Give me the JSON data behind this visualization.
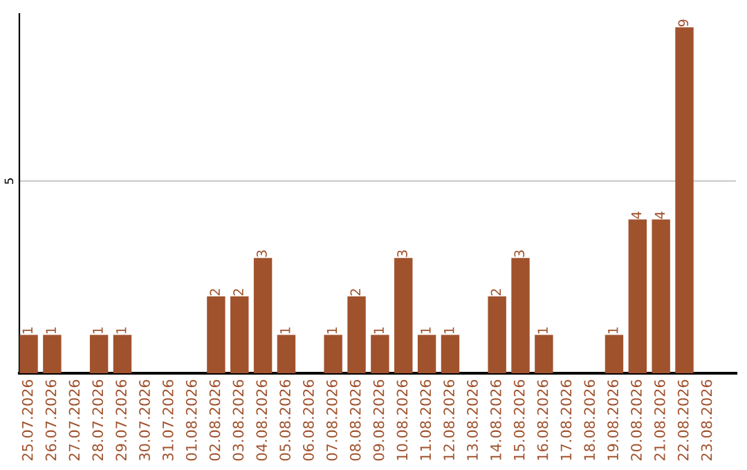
{
  "chart_data": {
    "type": "bar",
    "categories": [
      "25.07.2026",
      "26.07.2026",
      "27.07.2026",
      "28.07.2026",
      "29.07.2026",
      "30.07.2026",
      "31.07.2026",
      "01.08.2026",
      "02.08.2026",
      "03.08.2026",
      "04.08.2026",
      "05.08.2026",
      "06.08.2026",
      "07.08.2026",
      "08.08.2026",
      "09.08.2026",
      "10.08.2026",
      "11.08.2026",
      "12.08.2026",
      "13.08.2026",
      "14.08.2026",
      "15.08.2026",
      "16.08.2026",
      "17.08.2026",
      "18.08.2026",
      "19.08.2026",
      "20.08.2026",
      "21.08.2026",
      "22.08.2026",
      "23.08.2026"
    ],
    "values": [
      1,
      1,
      0,
      1,
      1,
      0,
      0,
      0,
      2,
      2,
      3,
      1,
      0,
      1,
      2,
      1,
      3,
      1,
      1,
      0,
      2,
      3,
      1,
      0,
      0,
      1,
      4,
      4,
      9,
      0
    ],
    "value_labels": [
      "1",
      "1",
      null,
      "1",
      "1",
      null,
      null,
      null,
      "2",
      "2",
      "3",
      "1",
      null,
      "1",
      "2",
      "1",
      "3",
      "1",
      "1",
      null,
      "2",
      "3",
      "1",
      null,
      null,
      "1",
      "4",
      "4",
      "9",
      null
    ],
    "color": "#a0522d",
    "ylim": [
      0,
      9.35
    ],
    "yticks": [
      5
    ],
    "grid": "y"
  }
}
